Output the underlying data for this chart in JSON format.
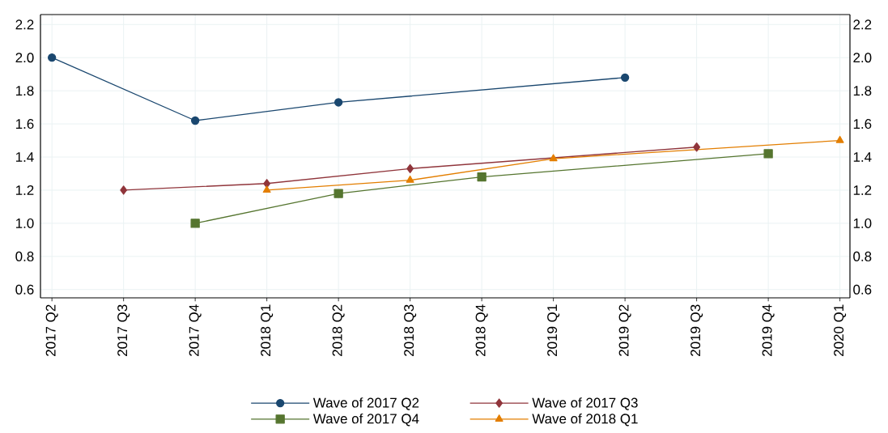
{
  "chart_data": {
    "type": "line",
    "categories": [
      "2017 Q2",
      "2017 Q3",
      "2017 Q4",
      "2018 Q1",
      "2018 Q2",
      "2018 Q3",
      "2018 Q4",
      "2019 Q1",
      "2019 Q2",
      "2019 Q3",
      "2019 Q4",
      "2020 Q1"
    ],
    "series": [
      {
        "name": "Wave of 2017 Q2",
        "color": "#1a476f",
        "marker": "circle",
        "values": [
          2.0,
          null,
          1.62,
          null,
          1.73,
          null,
          null,
          null,
          1.88,
          null,
          null,
          null
        ]
      },
      {
        "name": "Wave of 2017 Q3",
        "color": "#90353b",
        "marker": "diamond",
        "values": [
          null,
          1.2,
          null,
          1.24,
          null,
          1.33,
          null,
          null,
          null,
          1.46,
          null,
          null
        ]
      },
      {
        "name": "Wave of 2017 Q4",
        "color": "#55752f",
        "marker": "square",
        "values": [
          null,
          null,
          1.0,
          null,
          1.18,
          null,
          1.28,
          null,
          null,
          null,
          1.42,
          null
        ]
      },
      {
        "name": "Wave of 2018 Q1",
        "color": "#e37e00",
        "marker": "triangle",
        "values": [
          null,
          null,
          null,
          1.2,
          null,
          1.26,
          null,
          1.39,
          null,
          null,
          null,
          1.5
        ]
      }
    ],
    "ylim": [
      0.55,
      2.26
    ],
    "yticks": [
      0.6,
      0.8,
      {
        "value": 1.0,
        "label": "1.0"
      },
      1.2,
      1.4,
      1.6,
      1.8,
      {
        "value": 2.0,
        "label": "2.0"
      },
      2.2
    ],
    "y2lim": [
      0.55,
      2.26
    ],
    "y2ticks": [
      0.6,
      0.8,
      {
        "value": 1.0,
        "label": "1.0"
      },
      1.2,
      1.4,
      1.6,
      1.8,
      {
        "value": 2.0,
        "label": "2.0"
      },
      2.2
    ],
    "grid": true,
    "legend": "bottom",
    "line_style": "solid"
  }
}
